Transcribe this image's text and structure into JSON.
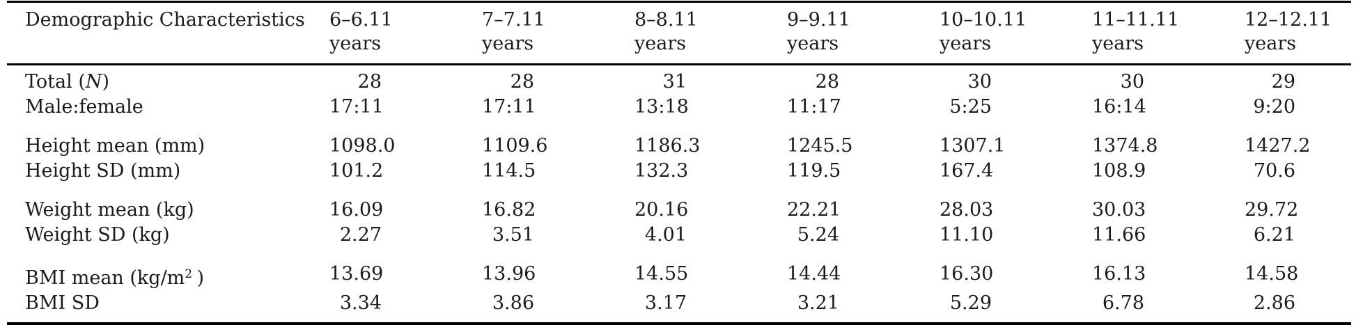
{
  "colors": {
    "text": "#1b1b1b",
    "rule": "#000000",
    "background": "#ffffff"
  },
  "table": {
    "header": {
      "label_column": "Demographic Characteristics",
      "age_columns": [
        {
          "range": "6–6.11",
          "unit": "years"
        },
        {
          "range": "7–7.11",
          "unit": "years"
        },
        {
          "range": "8–8.11",
          "unit": "years"
        },
        {
          "range": "9–9.11",
          "unit": "years"
        },
        {
          "range": "10–10.11",
          "unit": "years"
        },
        {
          "range": "11–11.11",
          "unit": "years"
        },
        {
          "range": "12–12.11",
          "unit": "years"
        }
      ]
    },
    "rows": [
      {
        "label_parts": [
          {
            "text": "Total ("
          },
          {
            "text": "N",
            "style": "italic"
          },
          {
            "text": ")"
          }
        ],
        "values": [
          "28",
          "28",
          "31",
          "28",
          "30",
          "30",
          "29"
        ],
        "group_start": false
      },
      {
        "label_parts": [
          {
            "text": "Male:female"
          }
        ],
        "values": [
          "17:11",
          "17:11",
          "13:18",
          "11:17",
          "5:25",
          "16:14",
          "9:20"
        ],
        "group_start": false
      },
      {
        "label_parts": [
          {
            "text": "Height mean (mm)"
          }
        ],
        "values": [
          "1098.0",
          "1109.6",
          "1186.3",
          "1245.5",
          "1307.1",
          "1374.8",
          "1427.2"
        ],
        "group_start": true
      },
      {
        "label_parts": [
          {
            "text": "Height SD (mm)"
          }
        ],
        "values": [
          "101.2",
          "114.5",
          "132.3",
          "119.5",
          "167.4",
          "108.9",
          "70.6"
        ],
        "group_start": false
      },
      {
        "label_parts": [
          {
            "text": "Weight mean (kg)"
          }
        ],
        "values": [
          "16.09",
          "16.82",
          "20.16",
          "22.21",
          "28.03",
          "30.03",
          "29.72"
        ],
        "group_start": true
      },
      {
        "label_parts": [
          {
            "text": "Weight SD (kg)"
          }
        ],
        "values": [
          "2.27",
          "3.51",
          "4.01",
          "5.24",
          "11.10",
          "11.66",
          "6.21"
        ],
        "group_start": false
      },
      {
        "label_parts": [
          {
            "text": "BMI mean (kg/m"
          },
          {
            "text": "2",
            "style": "sup"
          },
          {
            "text": " )"
          }
        ],
        "values": [
          "13.69",
          "13.96",
          "14.55",
          "14.44",
          "16.30",
          "16.13",
          "14.58"
        ],
        "group_start": true
      },
      {
        "label_parts": [
          {
            "text": "BMI SD"
          }
        ],
        "values": [
          "3.34",
          "3.86",
          "3.17",
          "3.21",
          "5.29",
          "6.78",
          "2.86"
        ],
        "group_start": false
      }
    ]
  }
}
